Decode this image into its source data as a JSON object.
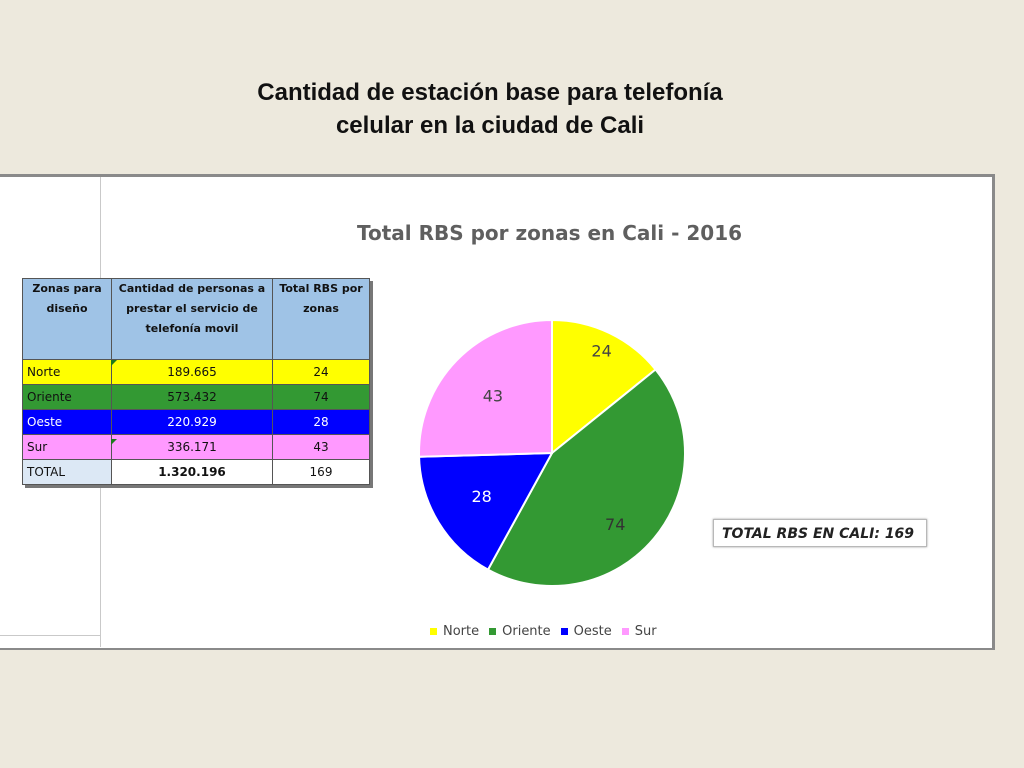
{
  "slide": {
    "title_line1": "Cantidad de estación base para telefonía",
    "title_line2": "celular en la ciudad de Cali"
  },
  "table": {
    "headers": [
      "Zonas para diseño",
      "Cantidad de personas a prestar el servicio de telefonía movil",
      "Total RBS por zonas"
    ],
    "rows": [
      {
        "zona": "Norte",
        "personas": "189.665",
        "rbs": "24"
      },
      {
        "zona": "Oriente",
        "personas": "573.432",
        "rbs": "74"
      },
      {
        "zona": "Oeste",
        "personas": "220.929",
        "rbs": "28"
      },
      {
        "zona": "Sur",
        "personas": "336.171",
        "rbs": "43"
      },
      {
        "zona": "TOTAL",
        "personas": "1.320.196",
        "rbs": "169"
      }
    ]
  },
  "total_box": "TOTAL RBS EN CALI: 169",
  "chart_data": {
    "type": "pie",
    "title": "Total RBS por zonas en Cali - 2016",
    "categories": [
      "Norte",
      "Oriente",
      "Oeste",
      "Sur"
    ],
    "values": [
      24,
      74,
      28,
      43
    ],
    "colors": [
      "#ffff00",
      "#339933",
      "#0000ff",
      "#ff99ff"
    ],
    "label_colors": [
      "#444444",
      "#333333",
      "#ffffff",
      "#444444"
    ],
    "legend_position": "bottom"
  }
}
